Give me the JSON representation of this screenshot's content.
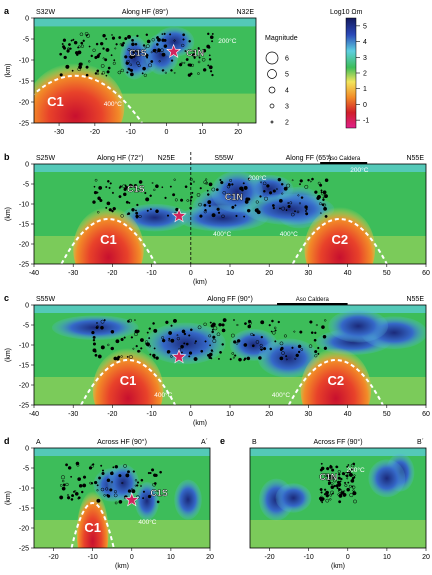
{
  "colors": {
    "deep_red": "#c8102e",
    "orange": "#f28c28",
    "yellow": "#f2e55c",
    "green": "#3dbd5a",
    "cyan": "#5ecfe0",
    "blue": "#3568c8",
    "navy": "#1b2a7a",
    "magenta": "#e0218a",
    "temp_line": "#ffffff",
    "quake": "#000000",
    "star": "#d0245e"
  },
  "colorbar": {
    "title": "Log10 Ωm",
    "ticks": [
      "5",
      "4",
      "3",
      "2",
      "1",
      "0",
      "-1"
    ]
  },
  "magnitude_legend": {
    "title": "Magnitude",
    "items": [
      "6",
      "5",
      "4",
      "3",
      "2"
    ]
  },
  "chart_data": [
    {
      "type": "heatmap",
      "panel": "a",
      "title": "Along HF (89°)",
      "left_label": "S32W",
      "right_label": "N32E",
      "ylabel": "(km)",
      "xlim": [
        -37,
        25
      ],
      "ylim": [
        -25,
        0
      ],
      "xticks": [
        "-30",
        "-20",
        "-10",
        "0",
        "10",
        "20"
      ],
      "yticks": [
        "0",
        "-5",
        "-10",
        "-15",
        "-20",
        "-25"
      ],
      "labels": [
        {
          "text": "C1",
          "x": -31,
          "y": -21
        },
        {
          "text": "C1S",
          "x": -8,
          "y": -9
        },
        {
          "text": "C1N",
          "x": 8,
          "y": -9
        }
      ],
      "isotherms": [
        {
          "text": "200°C",
          "x": 17,
          "y": -6
        },
        {
          "text": "400°C",
          "x": -15,
          "y": -21
        }
      ]
    },
    {
      "type": "heatmap",
      "panel": "b",
      "title_left": "Along HF (72°)",
      "title_right": "Along FF (65°)",
      "left_label": "S25W",
      "center_left_label": "N25E",
      "center_right_label": "S55W",
      "right_label": "N55E",
      "caldera_label": "Aso Caldera",
      "ylabel": "(km)",
      "xlabel": "(km)",
      "xlim": [
        -40,
        60
      ],
      "ylim": [
        -25,
        0
      ],
      "xticks": [
        "-40",
        "-30",
        "-20",
        "-10",
        "0",
        "10",
        "20",
        "30",
        "40",
        "50",
        "60"
      ],
      "yticks": [
        "0",
        "-5",
        "-10",
        "-15",
        "-20",
        "-25"
      ],
      "labels": [
        {
          "text": "C1S",
          "x": -14,
          "y": -7
        },
        {
          "text": "C1N",
          "x": 11,
          "y": -9
        },
        {
          "text": "C1",
          "x": -21,
          "y": -20
        },
        {
          "text": "C2",
          "x": 38,
          "y": -20
        }
      ],
      "isotherms": [
        {
          "text": "200°C",
          "x": 43,
          "y": -2
        },
        {
          "text": "200°C",
          "x": 17,
          "y": -4
        },
        {
          "text": "400°C",
          "x": 8,
          "y": -18
        },
        {
          "text": "400°C",
          "x": 25,
          "y": -18
        }
      ]
    },
    {
      "type": "heatmap",
      "panel": "c",
      "title": "Along FF (90°)",
      "left_label": "S55W",
      "right_label": "N55E",
      "caldera_label": "Aso Caldera",
      "ylabel": "(km)",
      "xlabel": "(km)",
      "xlim": [
        -40,
        60
      ],
      "ylim": [
        -25,
        0
      ],
      "xticks": [
        "-40",
        "-30",
        "-20",
        "-10",
        "0",
        "10",
        "20",
        "30",
        "40",
        "50",
        "60"
      ],
      "yticks": [
        "0",
        "-5",
        "-10",
        "-15",
        "-20",
        "-25"
      ],
      "labels": [
        {
          "text": "C1",
          "x": -16,
          "y": -20
        },
        {
          "text": "C2",
          "x": 37,
          "y": -20
        }
      ],
      "isotherms": [
        {
          "text": "400°C",
          "x": -7,
          "y": -23
        },
        {
          "text": "400°C",
          "x": 23,
          "y": -23
        }
      ]
    },
    {
      "type": "heatmap",
      "panel": "d",
      "title": "Across HF (90°)",
      "left_label": "A",
      "right_label": "A´",
      "ylabel": "(km)",
      "xlabel": "(km)",
      "xlim": [
        -25,
        20
      ],
      "ylim": [
        -25,
        0
      ],
      "xticks": [
        "-20",
        "-10",
        "0",
        "10",
        "20"
      ],
      "yticks": [
        "0",
        "-5",
        "-10",
        "-15",
        "-20",
        "-25"
      ],
      "labels": [
        {
          "text": "C1S",
          "x": 7,
          "y": -12
        },
        {
          "text": "C1",
          "x": -10,
          "y": -21
        }
      ],
      "isotherms": [
        {
          "text": "400°C",
          "x": 4,
          "y": -19
        }
      ]
    },
    {
      "type": "heatmap",
      "panel": "e",
      "title": "Across FF (90°)",
      "left_label": "B",
      "right_label": "B´",
      "xlabel": "(km)",
      "xlim": [
        -25,
        20
      ],
      "ylim": [
        -25,
        0
      ],
      "xticks": [
        "-20",
        "-10",
        "0",
        "10",
        "20"
      ],
      "labels": [
        {
          "text": "C1N",
          "x": -5,
          "y": -8
        }
      ],
      "isotherms": [
        {
          "text": "200°C",
          "x": 2,
          "y": -6
        }
      ]
    }
  ]
}
